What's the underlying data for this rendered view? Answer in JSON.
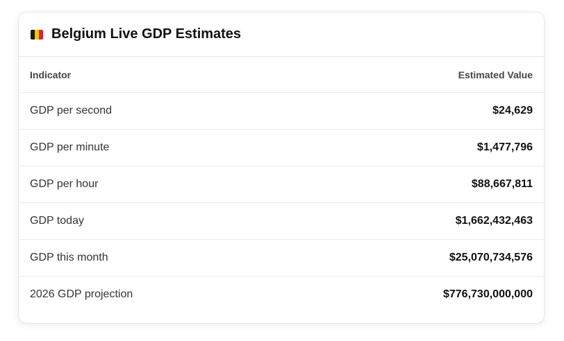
{
  "header": {
    "title": "Belgium Live GDP Estimates"
  },
  "table": {
    "columns": [
      "Indicator",
      "Estimated Value"
    ],
    "rows": [
      [
        "GDP per second",
        "$24,629"
      ],
      [
        "GDP per minute",
        "$1,477,796"
      ],
      [
        "GDP per hour",
        "$88,667,811"
      ],
      [
        "GDP today",
        "$1,662,432,463"
      ],
      [
        "GDP this month",
        "$25,070,734,576"
      ],
      [
        "2026 GDP projection",
        "$776,730,000,000"
      ]
    ]
  }
}
